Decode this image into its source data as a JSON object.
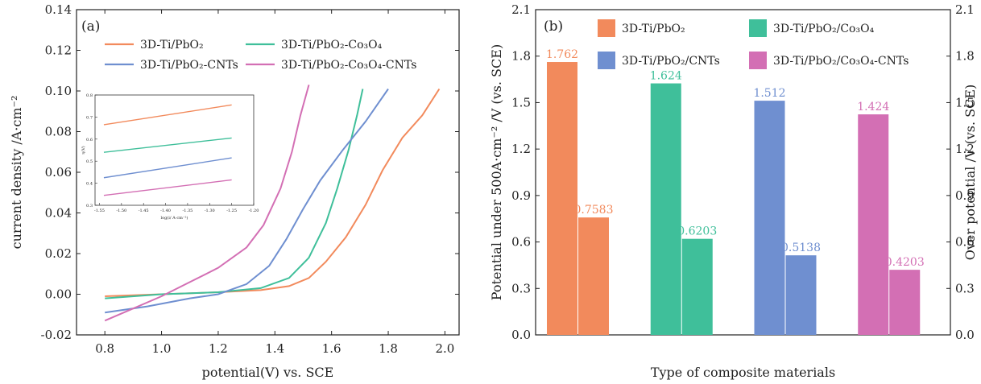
{
  "chart_data": [
    {
      "type": "line",
      "panel_label": "(a)",
      "xlabel": "potential(V) vs. SCE",
      "ylabel": "current density /A·cm⁻²",
      "xlim": [
        0.7,
        2.05
      ],
      "ylim": [
        -0.02,
        0.14
      ],
      "xticks": [
        "0.8",
        "1.0",
        "1.2",
        "1.4",
        "1.6",
        "1.8",
        "2.0"
      ],
      "yticks": [
        "-0.02",
        "0.00",
        "0.02",
        "0.04",
        "0.06",
        "0.08",
        "0.10",
        "0.12",
        "0.14"
      ],
      "xtick_values": [
        0.8,
        1.0,
        1.2,
        1.4,
        1.6,
        1.8,
        2.0
      ],
      "ytick_values": [
        -0.02,
        0.0,
        0.02,
        0.04,
        0.06,
        0.08,
        0.1,
        0.12,
        0.14
      ],
      "legend_position": "top",
      "series": [
        {
          "name": "3D-Ti/PbO₂",
          "color": "#f28a5c",
          "x": [
            0.8,
            1.0,
            1.2,
            1.35,
            1.45,
            1.52,
            1.58,
            1.65,
            1.72,
            1.78,
            1.85,
            1.92,
            1.98
          ],
          "y": [
            -0.001,
            0.0,
            0.001,
            0.002,
            0.004,
            0.008,
            0.016,
            0.028,
            0.044,
            0.061,
            0.077,
            0.088,
            0.101
          ]
        },
        {
          "name": "3D-Ti/PbO₂-Co₃O₄",
          "color": "#3fbf9a",
          "x": [
            0.8,
            1.0,
            1.2,
            1.35,
            1.45,
            1.52,
            1.58,
            1.62,
            1.66,
            1.69,
            1.71
          ],
          "y": [
            -0.002,
            0.0,
            0.001,
            0.003,
            0.008,
            0.018,
            0.035,
            0.052,
            0.071,
            0.088,
            0.101
          ]
        },
        {
          "name": "3D-Ti/PbO₂-CNTs",
          "color": "#6f8fd0",
          "x": [
            0.8,
            0.95,
            1.1,
            1.2,
            1.3,
            1.38,
            1.44,
            1.5,
            1.56,
            1.64,
            1.72,
            1.8
          ],
          "y": [
            -0.009,
            -0.006,
            -0.002,
            0.0,
            0.005,
            0.014,
            0.027,
            0.042,
            0.056,
            0.071,
            0.085,
            0.101
          ]
        },
        {
          "name": "3D-Ti/PbO₂-Co₃O₄-CNTs",
          "color": "#d36fb4",
          "x": [
            0.8,
            0.9,
            1.0,
            1.1,
            1.2,
            1.3,
            1.36,
            1.42,
            1.46,
            1.49,
            1.52
          ],
          "y": [
            -0.013,
            -0.007,
            -0.001,
            0.006,
            0.013,
            0.023,
            0.034,
            0.052,
            0.07,
            0.088,
            0.103
          ]
        }
      ],
      "inset": {
        "xlabel": "log(i/ A·cm⁻²)",
        "ylabel": "η(V)",
        "xlim": [
          -1.56,
          -1.2
        ],
        "ylim": [
          0.3,
          0.8
        ],
        "xticks": [
          "-1.55",
          "-1.50",
          "-1.45",
          "-1.40",
          "-1.35",
          "-1.30",
          "-1.25",
          "-1.20"
        ],
        "yticks": [
          "0.3",
          "0.4",
          "0.5",
          "0.6",
          "0.7",
          "0.8"
        ],
        "xtick_values": [
          -1.55,
          -1.5,
          -1.45,
          -1.4,
          -1.35,
          -1.3,
          -1.25,
          -1.2
        ],
        "ytick_values": [
          0.3,
          0.4,
          0.5,
          0.6,
          0.7,
          0.8
        ],
        "lines": [
          {
            "color": "#f28a5c",
            "x": [
              -1.54,
              -1.25
            ],
            "y": [
              0.665,
              0.755
            ]
          },
          {
            "color": "#3fbf9a",
            "x": [
              -1.54,
              -1.25
            ],
            "y": [
              0.54,
              0.605
            ]
          },
          {
            "color": "#6f8fd0",
            "x": [
              -1.54,
              -1.25
            ],
            "y": [
              0.425,
              0.515
            ]
          },
          {
            "color": "#d36fb4",
            "x": [
              -1.54,
              -1.25
            ],
            "y": [
              0.345,
              0.415
            ]
          }
        ]
      }
    },
    {
      "type": "bar",
      "panel_label": "(b)",
      "xlabel": "Type of composite materials",
      "ylabel": "Potential under 500A·cm⁻² /V (vs. SCE)",
      "ylabel_right": "Over potential /V (vs. SCE)",
      "ylim": [
        0.0,
        2.1
      ],
      "yticks": [
        "0.0",
        "0.3",
        "0.6",
        "0.9",
        "1.2",
        "1.5",
        "1.8",
        "2.1"
      ],
      "ytick_values": [
        0.0,
        0.3,
        0.6,
        0.9,
        1.2,
        1.5,
        1.8,
        2.1
      ],
      "legend_position": "top",
      "categories": [
        "3D-Ti/PbO₂",
        "3D-Ti/PbO₂/Co₃O₄",
        "3D-Ti/PbO₂/CNTs",
        "3D-Ti/PbO₂/Co₃O₄-CNTs"
      ],
      "colors": [
        "#f28a5c",
        "#3fbf9a",
        "#6f8fd0",
        "#d36fb4"
      ],
      "potential": [
        1.762,
        1.624,
        1.512,
        1.424
      ],
      "overpotential": [
        0.7583,
        0.6203,
        0.5138,
        0.4203
      ],
      "potential_labels": [
        "1.762",
        "1.624",
        "1.512",
        "1.424"
      ],
      "overpotential_labels": [
        "0.7583",
        "0.6203",
        "0.5138",
        "0.4203"
      ]
    }
  ]
}
